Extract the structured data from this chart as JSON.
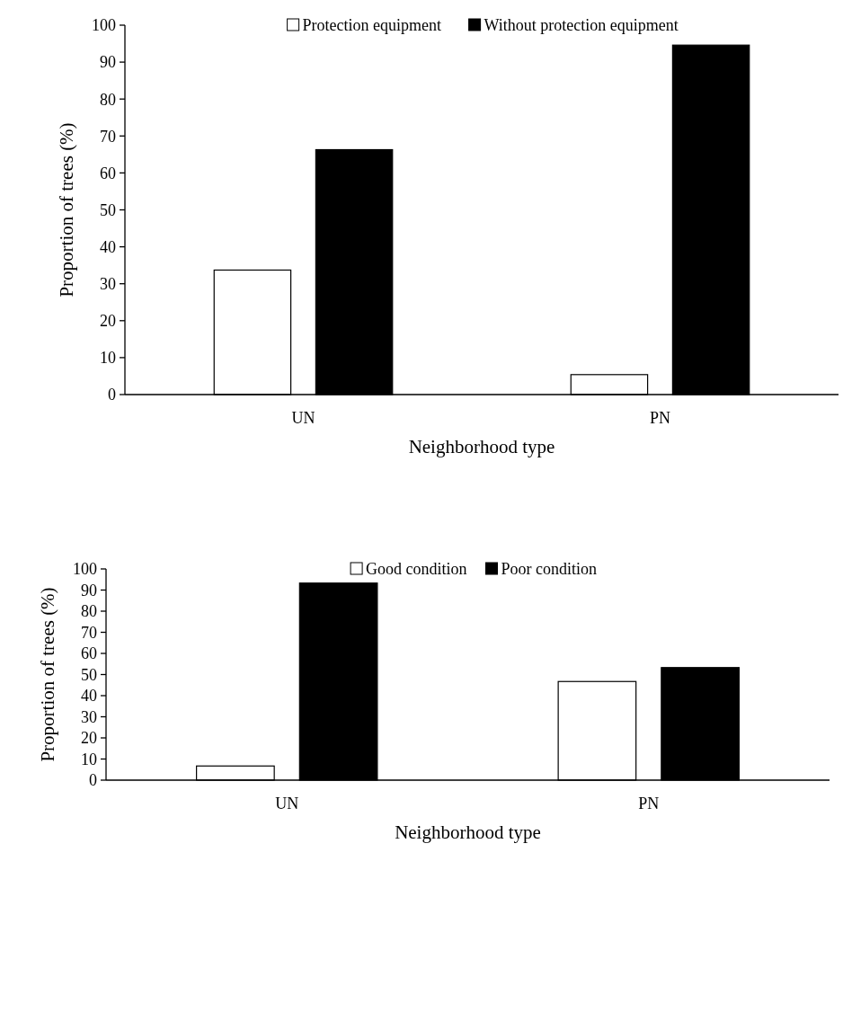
{
  "chart_data": [
    {
      "type": "bar",
      "categories": [
        "UN",
        "PN"
      ],
      "xlabel": "Neighborhood type",
      "ylabel": "Proportion of trees (%)",
      "ylim": [
        0,
        100
      ],
      "yticks": [
        0,
        10,
        20,
        30,
        40,
        50,
        60,
        70,
        80,
        90,
        100
      ],
      "legend": "top",
      "grid": false,
      "series": [
        {
          "name": "Protection equipment",
          "color": "#ffffff",
          "values": [
            33.7,
            5.4
          ]
        },
        {
          "name": "Without protection equipment",
          "color": "#000000",
          "values": [
            66.3,
            94.6
          ]
        }
      ]
    },
    {
      "type": "bar",
      "categories": [
        "UN",
        "PN"
      ],
      "xlabel": "Neighborhood type",
      "ylabel": "Proportion of trees (%)",
      "ylim": [
        0,
        100
      ],
      "yticks": [
        0,
        10,
        20,
        30,
        40,
        50,
        60,
        70,
        80,
        90,
        100
      ],
      "legend": "top",
      "grid": false,
      "series": [
        {
          "name": "Good condition",
          "color": "#ffffff",
          "values": [
            6.7,
            46.7
          ]
        },
        {
          "name": "Poor condition",
          "color": "#000000",
          "values": [
            93.3,
            53.3
          ]
        }
      ]
    }
  ]
}
